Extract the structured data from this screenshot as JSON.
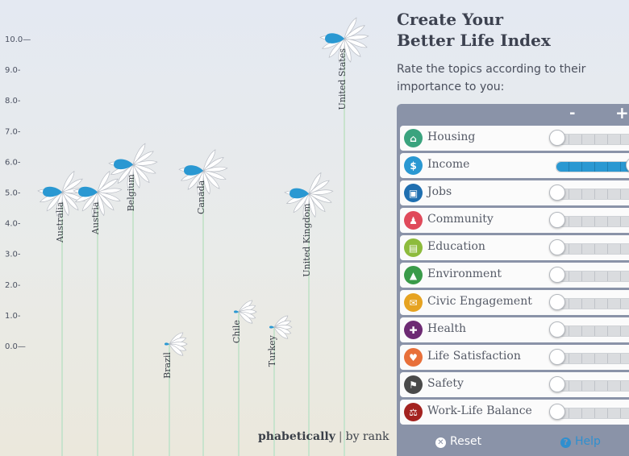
{
  "chart_data": {
    "type": "scatter",
    "y_ticks": [
      "10.0—",
      "9.0-",
      "8.0-",
      "7.0-",
      "6.0-",
      "5.0-",
      "4.0-",
      "3.0-",
      "2.0-",
      "1.0-",
      "0.0—"
    ],
    "ylim": [
      0,
      10
    ],
    "countries": [
      {
        "name": "Australia",
        "value": 5.0,
        "label_pos": "below"
      },
      {
        "name": "Austria",
        "value": 5.0,
        "label_pos": "below"
      },
      {
        "name": "Belgium",
        "value": 5.9,
        "label_pos": "below"
      },
      {
        "name": "Brazil",
        "value": 0.05,
        "label_pos": "below"
      },
      {
        "name": "Canada",
        "value": 5.7,
        "label_pos": "below"
      },
      {
        "name": "Chile",
        "value": 1.1,
        "label_pos": "below"
      },
      {
        "name": "Turkey",
        "value": 0.6,
        "label_pos": "below"
      },
      {
        "name": "United Kingdom",
        "value": 4.95,
        "label_pos": "below"
      },
      {
        "name": "United States",
        "value": 10.0,
        "label_pos": "below"
      }
    ],
    "colors": {
      "petal": "#ffffff",
      "income_petal": "#2a98d2",
      "stem": "#c8e3cd"
    }
  },
  "sort": {
    "alphabetically": "phabetically",
    "separator": "|",
    "by_rank": "by rank"
  },
  "panel": {
    "title_line1": "Create Your",
    "title_line2": "Better Life Index",
    "subtitle": "Rate the topics according to their importance to you:",
    "minus": "-",
    "plus": "+",
    "topics": [
      {
        "label": "Housing",
        "icon": "house-icon",
        "glyph": "⌂",
        "color": "#3aa37e",
        "level": 0
      },
      {
        "label": "Income",
        "icon": "money-icon",
        "glyph": "$",
        "color": "#2a98d2",
        "level": 1
      },
      {
        "label": "Jobs",
        "icon": "briefcase-icon",
        "glyph": "▣",
        "color": "#1f6fb0",
        "level": 0
      },
      {
        "label": "Community",
        "icon": "people-icon",
        "glyph": "♟",
        "color": "#e04a5b",
        "level": 0
      },
      {
        "label": "Education",
        "icon": "book-icon",
        "glyph": "▤",
        "color": "#8dbb3c",
        "level": 0
      },
      {
        "label": "Environment",
        "icon": "tree-icon",
        "glyph": "▲",
        "color": "#3a9b49",
        "level": 0
      },
      {
        "label": "Civic Engagement",
        "icon": "envelope-icon",
        "glyph": "✉",
        "color": "#e6a321",
        "level": 0
      },
      {
        "label": "Health",
        "icon": "cross-icon",
        "glyph": "✚",
        "color": "#6d2a73",
        "level": 0
      },
      {
        "label": "Life Satisfaction",
        "icon": "heart-icon",
        "glyph": "♥",
        "color": "#e8703a",
        "level": 0
      },
      {
        "label": "Safety",
        "icon": "runner-icon",
        "glyph": "⚑",
        "color": "#4a4a4a",
        "level": 0
      },
      {
        "label": "Work-Life Balance",
        "icon": "scales-icon",
        "glyph": "⚖",
        "color": "#a3221f",
        "level": 0
      }
    ],
    "reset": "Reset",
    "help": "Help"
  }
}
